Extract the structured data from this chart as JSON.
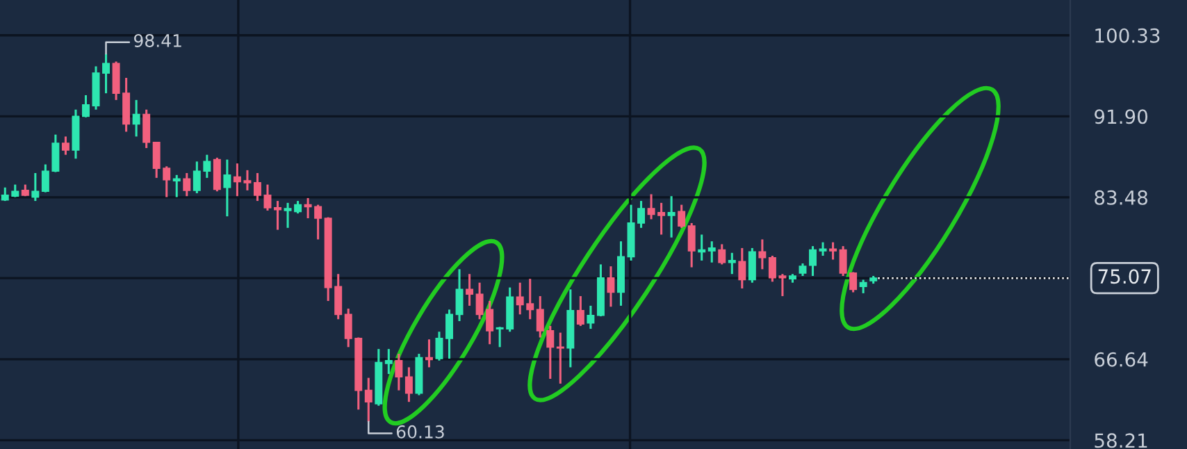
{
  "chart_data": {
    "type": "candlestick",
    "categories": [
      null,
      null,
      null,
      null,
      null,
      null,
      null,
      null,
      null,
      null,
      null,
      null,
      null,
      null,
      null,
      null,
      null,
      null,
      null,
      null,
      null,
      null,
      null,
      null,
      null,
      null,
      null,
      null,
      null,
      null,
      null,
      null,
      null,
      null,
      null,
      null,
      null,
      null,
      null,
      null,
      null,
      null,
      null,
      null,
      null,
      null,
      null,
      null,
      null,
      null,
      null,
      null,
      null,
      null,
      null,
      null,
      null,
      null,
      null,
      null,
      null,
      null,
      null,
      null,
      null,
      null,
      null,
      null,
      null,
      null,
      null,
      null,
      null,
      null,
      null,
      null,
      null,
      null,
      null,
      null,
      null,
      null,
      null,
      null,
      null,
      null,
      null,
      null,
      null,
      null,
      null,
      null,
      null,
      null,
      null,
      null,
      null,
      null,
      null,
      null,
      null,
      null,
      null,
      null,
      null,
      null
    ],
    "ohlc": [
      [
        83.2,
        84.5,
        83.1,
        83.7
      ],
      [
        83.6,
        84.8,
        83.5,
        84.1
      ],
      [
        84.2,
        84.8,
        83.6,
        83.7
      ],
      [
        83.5,
        86.0,
        83.1,
        84.1
      ],
      [
        84.1,
        86.9,
        84.0,
        86.2
      ],
      [
        86.2,
        90.0,
        86.1,
        89.1
      ],
      [
        89.1,
        89.8,
        87.9,
        88.4
      ],
      [
        88.4,
        92.6,
        87.5,
        91.9
      ],
      [
        91.9,
        94.1,
        91.8,
        93.1
      ],
      [
        93.0,
        97.1,
        92.6,
        96.4
      ],
      [
        96.4,
        98.41,
        94.3,
        97.4
      ],
      [
        97.4,
        97.6,
        93.6,
        94.3
      ],
      [
        94.3,
        95.9,
        90.3,
        91.1
      ],
      [
        91.1,
        93.6,
        89.8,
        92.1
      ],
      [
        92.1,
        92.6,
        88.6,
        89.2
      ],
      [
        89.2,
        89.2,
        85.5,
        86.5
      ],
      [
        86.5,
        86.7,
        83.5,
        85.3
      ],
      [
        85.2,
        85.8,
        83.5,
        85.4
      ],
      [
        85.4,
        86.0,
        83.6,
        84.2
      ],
      [
        84.2,
        87.2,
        83.9,
        86.2
      ],
      [
        86.2,
        87.9,
        85.5,
        87.2
      ],
      [
        87.4,
        87.6,
        84.1,
        84.3
      ],
      [
        84.5,
        87.4,
        81.5,
        85.8
      ],
      [
        85.6,
        87.0,
        83.6,
        85.1
      ],
      [
        85.2,
        86.3,
        84.2,
        85.0
      ],
      [
        85.0,
        86.0,
        83.1,
        83.7
      ],
      [
        83.7,
        84.8,
        82.1,
        82.4
      ],
      [
        82.4,
        83.1,
        80.1,
        82.2
      ],
      [
        82.1,
        82.9,
        80.3,
        82.3
      ],
      [
        82.0,
        83.1,
        81.8,
        82.7
      ],
      [
        82.7,
        83.4,
        81.3,
        82.5
      ],
      [
        82.5,
        82.7,
        79.1,
        81.3
      ],
      [
        81.3,
        81.4,
        72.7,
        74.1
      ],
      [
        74.2,
        75.5,
        70.8,
        71.3
      ],
      [
        71.3,
        71.9,
        67.9,
        68.8
      ],
      [
        68.8,
        68.9,
        61.4,
        63.4
      ],
      [
        63.4,
        64.7,
        60.13,
        62.2
      ],
      [
        62.0,
        67.7,
        61.8,
        66.3
      ],
      [
        66.2,
        67.7,
        65.1,
        66.5
      ],
      [
        66.5,
        67.2,
        63.4,
        64.8
      ],
      [
        64.8,
        65.8,
        62.2,
        63.1
      ],
      [
        63.1,
        67.2,
        62.9,
        66.8
      ],
      [
        66.8,
        68.7,
        65.8,
        66.6
      ],
      [
        66.7,
        69.5,
        66.5,
        68.8
      ],
      [
        68.8,
        71.8,
        66.7,
        71.3
      ],
      [
        71.3,
        76.0,
        70.6,
        73.9
      ],
      [
        73.9,
        75.5,
        72.2,
        73.4
      ],
      [
        73.4,
        74.6,
        70.8,
        71.3
      ],
      [
        71.8,
        72.7,
        68.2,
        69.6
      ],
      [
        69.8,
        70.0,
        67.9,
        69.9
      ],
      [
        69.8,
        74.1,
        69.5,
        73.1
      ],
      [
        73.1,
        74.6,
        71.3,
        72.3
      ],
      [
        72.4,
        75.0,
        70.8,
        71.8
      ],
      [
        71.8,
        73.2,
        68.9,
        69.6
      ],
      [
        69.6,
        70.1,
        64.6,
        67.9
      ],
      [
        67.9,
        69.4,
        64.1,
        67.8
      ],
      [
        67.8,
        73.9,
        65.8,
        71.7
      ],
      [
        71.7,
        73.2,
        70.1,
        70.3
      ],
      [
        70.4,
        72.2,
        69.8,
        71.2
      ],
      [
        71.2,
        76.5,
        71.1,
        75.1
      ],
      [
        75.1,
        76.3,
        72.1,
        73.6
      ],
      [
        73.6,
        78.9,
        72.2,
        77.3
      ],
      [
        77.3,
        82.7,
        76.9,
        80.8
      ],
      [
        80.8,
        83.1,
        80.3,
        82.3
      ],
      [
        82.3,
        83.8,
        81.2,
        81.7
      ],
      [
        81.9,
        82.9,
        79.6,
        81.6
      ],
      [
        81.6,
        83.6,
        79.3,
        81.9
      ],
      [
        82.0,
        82.7,
        80.3,
        80.5
      ],
      [
        80.5,
        80.8,
        76.2,
        77.9
      ],
      [
        77.8,
        79.6,
        76.9,
        78.0
      ],
      [
        77.9,
        78.9,
        76.7,
        78.2
      ],
      [
        78.0,
        78.6,
        76.5,
        76.7
      ],
      [
        76.7,
        77.7,
        75.5,
        76.9
      ],
      [
        76.8,
        78.2,
        74.0,
        74.9
      ],
      [
        74.9,
        78.2,
        74.6,
        77.8
      ],
      [
        77.8,
        79.1,
        76.0,
        77.2
      ],
      [
        77.2,
        77.4,
        74.7,
        75.1
      ],
      [
        75.3,
        75.5,
        73.2,
        75.1
      ],
      [
        75.0,
        75.5,
        74.6,
        75.3
      ],
      [
        75.6,
        76.6,
        75.3,
        76.3
      ],
      [
        76.4,
        78.4,
        75.3,
        78.0
      ],
      [
        77.9,
        78.8,
        77.4,
        78.1
      ],
      [
        78.1,
        78.8,
        77.0,
        77.9
      ],
      [
        78.0,
        78.4,
        75.3,
        75.6
      ],
      [
        75.6,
        75.7,
        73.6,
        73.9
      ],
      [
        74.2,
        74.9,
        73.5,
        74.6
      ],
      [
        74.8,
        75.3,
        74.5,
        75.07
      ],
      null,
      null,
      null,
      null,
      null,
      null,
      null,
      null,
      null,
      null,
      null,
      null,
      null,
      null,
      null,
      null,
      null,
      null,
      null
    ],
    "ylim": [
      57.3,
      104.0
    ],
    "yticks": [
      58.21,
      66.64,
      {
        "value": 75.07,
        "label": null
      },
      83.48,
      {
        "value": 91.9,
        "label": "91.90"
      },
      100.33
    ],
    "grid": true,
    "ref_lines": [
      {
        "axis": "y",
        "value": 75.07,
        "label": "75.07",
        "color": "#ffffff",
        "line_style": "dotted"
      }
    ],
    "annotations": [
      "98.41",
      "60.13"
    ]
  }
}
